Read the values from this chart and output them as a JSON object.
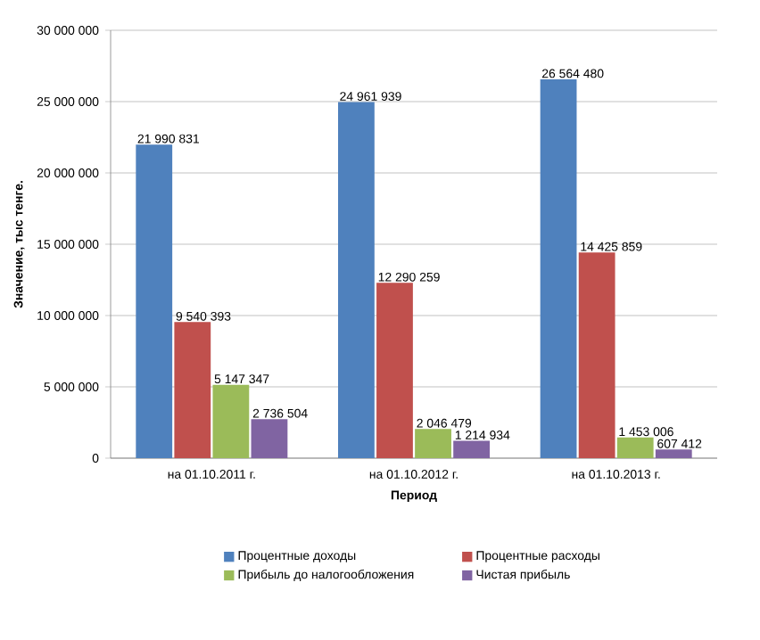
{
  "chart_data": {
    "type": "bar",
    "xlabel": "Период",
    "ylabel": "Значение, тыс тенге.",
    "categories": [
      "на 01.10.2011 г.",
      "на 01.10.2012 г.",
      "на 01.10.2013 г."
    ],
    "series": [
      {
        "name": "Процентные доходы",
        "color": "#4f81bd",
        "values": [
          21990831,
          24961939,
          26564480
        ],
        "value_labels": [
          "21 990 831",
          "24 961 939",
          "26 564 480"
        ]
      },
      {
        "name": "Процентные расходы",
        "color": "#c0504d",
        "values": [
          9540393,
          12290259,
          14425859
        ],
        "value_labels": [
          "9 540 393",
          "12 290 259",
          "14 425 859"
        ]
      },
      {
        "name": "Прибыль до налогообложения",
        "color": "#9bbb59",
        "values": [
          5147347,
          2046479,
          1453006
        ],
        "value_labels": [
          "5 147 347",
          "2 046 479",
          "1 453 006"
        ]
      },
      {
        "name": "Чистая прибыль",
        "color": "#8064a2",
        "values": [
          2736504,
          1214934,
          607412
        ],
        "value_labels": [
          "2 736 504",
          "1 214 934",
          "607 412"
        ]
      }
    ],
    "ylim": [
      0,
      30000000
    ],
    "yticks": [
      0,
      {
        "value": 5000000,
        "label": "5 000 000"
      },
      {
        "value": 10000000,
        "label": "10 000 000"
      },
      {
        "value": 15000000,
        "label": "15 000 000"
      },
      {
        "value": 20000000,
        "label": "20 000 000"
      },
      {
        "value": 25000000,
        "label": "25 000 000"
      },
      {
        "value": 30000000,
        "label": "30 000 000"
      }
    ],
    "grid": "y",
    "legend": "bottom"
  }
}
